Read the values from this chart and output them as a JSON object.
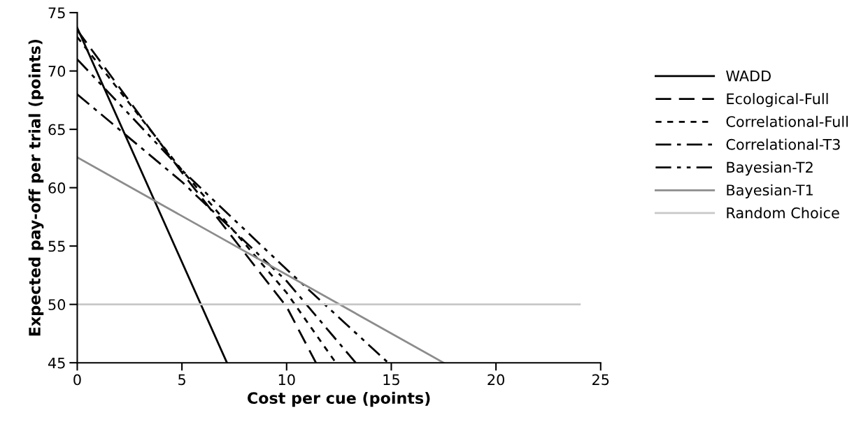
{
  "chart_data": {
    "type": "line",
    "xlabel": "Cost per cue (points)",
    "ylabel": "Expected pay-off per trial (points)",
    "xlim": [
      0,
      25
    ],
    "ylim": [
      45,
      75
    ],
    "xticks": [
      0,
      5,
      10,
      15,
      20,
      25
    ],
    "yticks": [
      45,
      50,
      55,
      60,
      65,
      70,
      75
    ],
    "grid": false,
    "legend": "right",
    "marker": "none",
    "series": [
      {
        "name": "WADD",
        "color": "#000000",
        "line_style": "solid",
        "x": [
          0,
          7.15
        ],
        "values": [
          73.7,
          45
        ]
      },
      {
        "name": "Ecological-Full",
        "color": "#000000",
        "line_style": "longdash",
        "x": [
          0,
          5,
          10,
          11.4
        ],
        "values": [
          73.5,
          61.3,
          49.8,
          45
        ]
      },
      {
        "name": "Correlational-Full",
        "color": "#000000",
        "line_style": "dashed",
        "x": [
          0,
          5,
          10,
          12.35
        ],
        "values": [
          72.9,
          61.5,
          51,
          45
        ]
      },
      {
        "name": "Correlational-T3",
        "color": "#000000",
        "line_style": "dashdot",
        "x": [
          0,
          5,
          10,
          13.3
        ],
        "values": [
          68,
          60.5,
          52,
          45
        ]
      },
      {
        "name": "Bayesian-T2",
        "color": "#000000",
        "line_style": "dashdotdot",
        "x": [
          0,
          5,
          10,
          14.85
        ],
        "values": [
          71,
          61.5,
          53,
          45
        ]
      },
      {
        "name": "Bayesian-T1",
        "color": "#8c8c8c",
        "line_style": "solid",
        "x": [
          0,
          17.5
        ],
        "values": [
          62.6,
          45
        ]
      },
      {
        "name": "Random Choice",
        "color": "#c8c8c8",
        "line_style": "solid",
        "x": [
          0,
          24
        ],
        "values": [
          50,
          50
        ]
      }
    ]
  }
}
